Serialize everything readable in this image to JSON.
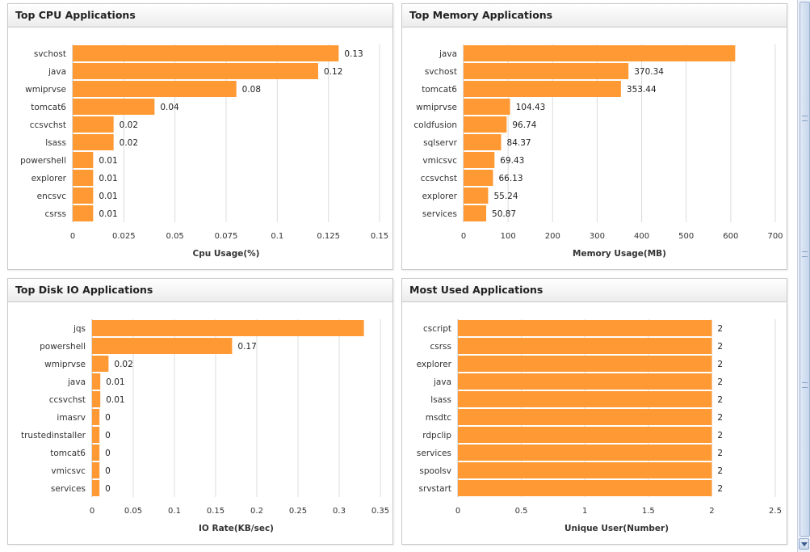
{
  "charts": [
    {
      "panel_title": "Top CPU Applications",
      "xlabel": "Cpu Usage(%)",
      "ticks": [
        "0",
        "0.025",
        "0.05",
        "0.075",
        "0.1",
        "0.125",
        "0.15"
      ],
      "tick_values": [
        0,
        0.025,
        0.05,
        0.075,
        0.1,
        0.125,
        0.15
      ]
    },
    {
      "panel_title": "Top Memory Applications",
      "xlabel": "Memory Usage(MB)",
      "ticks": [
        "0",
        "100",
        "200",
        "300",
        "400",
        "500",
        "600",
        "700"
      ],
      "tick_values": [
        0,
        100,
        200,
        300,
        400,
        500,
        600,
        700
      ]
    },
    {
      "panel_title": "Top Disk IO Applications",
      "xlabel": "IO Rate(KB/sec)",
      "ticks": [
        "0",
        "0.05",
        "0.1",
        "0.15",
        "0.2",
        "0.25",
        "0.3",
        "0.35"
      ],
      "tick_values": [
        0,
        0.05,
        0.1,
        0.15,
        0.2,
        0.25,
        0.3,
        0.35
      ]
    },
    {
      "panel_title": "Most Used Applications",
      "xlabel": "Unique User(Number)",
      "ticks": [
        "0",
        "0.5",
        "1",
        "1.5",
        "2",
        "2.5"
      ],
      "tick_values": [
        0,
        0.5,
        1,
        1.5,
        2,
        2.5
      ]
    }
  ],
  "chart_data": [
    {
      "type": "bar",
      "orientation": "horizontal",
      "title": "Top CPU Applications",
      "xlabel": "Cpu Usage(%)",
      "xlim": [
        0,
        0.15
      ],
      "grid": true,
      "bar_color": "#ff9933",
      "categories": [
        "svchost",
        "java",
        "wmiprvse",
        "tomcat6",
        "ccsvchst",
        "lsass",
        "powershell",
        "explorer",
        "encsvc",
        "csrss"
      ],
      "values": [
        0.13,
        0.12,
        0.08,
        0.04,
        0.02,
        0.02,
        0.01,
        0.01,
        0.01,
        0.01
      ],
      "labels": [
        "0.13",
        "0.12",
        "0.08",
        "0.04",
        "0.02",
        "0.02",
        "0.01",
        "0.01",
        "0.01",
        "0.01"
      ]
    },
    {
      "type": "bar",
      "orientation": "horizontal",
      "title": "Top Memory Applications",
      "xlabel": "Memory Usage(MB)",
      "xlim": [
        0,
        700
      ],
      "grid": true,
      "bar_color": "#ff9933",
      "categories": [
        "java",
        "svchost",
        "tomcat6",
        "wmiprvse",
        "coldfusion",
        "sqlservr",
        "vmicsvc",
        "ccsvchst",
        "explorer",
        "services"
      ],
      "values": [
        610,
        370.34,
        353.44,
        104.43,
        96.74,
        84.37,
        69.43,
        66.13,
        55.24,
        50.87
      ],
      "labels": [
        "",
        "370.34",
        "353.44",
        "104.43",
        "96.74",
        "84.37",
        "69.43",
        "66.13",
        "55.24",
        "50.87"
      ]
    },
    {
      "type": "bar",
      "orientation": "horizontal",
      "title": "Top Disk IO Applications",
      "xlabel": "IO Rate(KB/sec)",
      "xlim": [
        0,
        0.35
      ],
      "grid": true,
      "bar_color": "#ff9933",
      "categories": [
        "jqs",
        "powershell",
        "wmiprvse",
        "java",
        "ccsvchst",
        "imasrv",
        "trustedinstaller",
        "tomcat6",
        "vmicsvc",
        "services"
      ],
      "values": [
        0.33,
        0.17,
        0.02,
        0.01,
        0.01,
        0.009,
        0.009,
        0.009,
        0.009,
        0.009
      ],
      "labels": [
        "",
        "0.17",
        "0.02",
        "0.01",
        "0.01",
        "0",
        "0",
        "0",
        "0",
        "0"
      ]
    },
    {
      "type": "bar",
      "orientation": "horizontal",
      "title": "Most Used Applications",
      "xlabel": "Unique User(Number)",
      "xlim": [
        0,
        2.5
      ],
      "grid": true,
      "bar_color": "#ff9933",
      "categories": [
        "cscript",
        "csrss",
        "explorer",
        "java",
        "lsass",
        "msdtc",
        "rdpclip",
        "services",
        "spoolsv",
        "srvstart"
      ],
      "values": [
        2,
        2,
        2,
        2,
        2,
        2,
        2,
        2,
        2,
        2
      ],
      "labels": [
        "2",
        "2",
        "2",
        "2",
        "2",
        "2",
        "2",
        "2",
        "2",
        "2"
      ]
    }
  ]
}
